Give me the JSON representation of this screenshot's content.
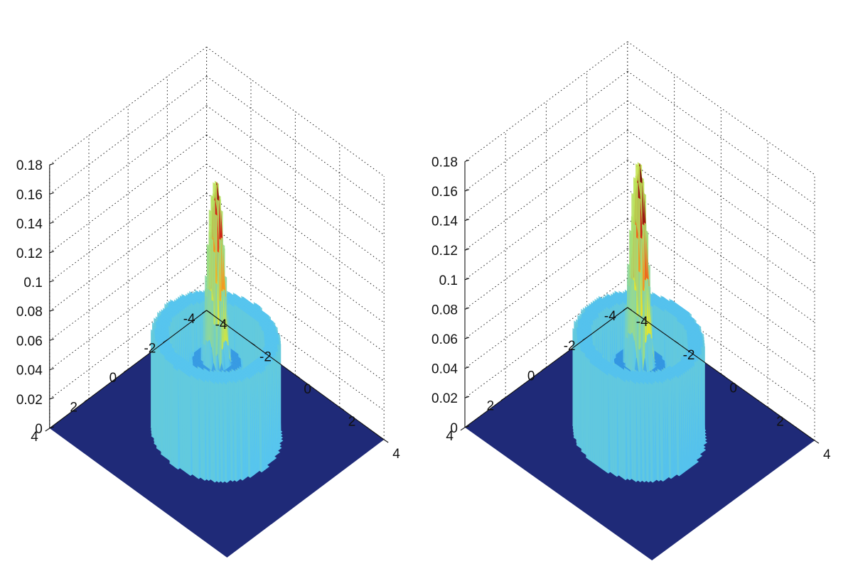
{
  "colors": {
    "floor": "#1f2a78",
    "colormap": [
      "#0a1a86",
      "#1558c8",
      "#2f8fe0",
      "#58c6ee",
      "#a8e070",
      "#e8e62a",
      "#f4a324",
      "#e62a1a",
      "#7a0c0c"
    ]
  },
  "chart_data": [
    {
      "type": "surface",
      "title": "",
      "xlabel": "",
      "ylabel": "",
      "zlabel": "",
      "xlim": [
        -4,
        4
      ],
      "ylim": [
        -4,
        4
      ],
      "zlim": [
        0,
        0.18
      ],
      "x_ticks": [
        "-4",
        "-2",
        "0",
        "2",
        "4"
      ],
      "y_ticks": [
        "-4",
        "-2",
        "0",
        "2",
        "4"
      ],
      "z_ticks": [
        "0",
        "0.02",
        "0.04",
        "0.06",
        "0.08",
        "0.1",
        "0.12",
        "0.14",
        "0.16",
        "0.18"
      ],
      "grid": true,
      "peak": {
        "value": 0.172,
        "width": 0.28
      },
      "shoulder": {
        "value": 0.05,
        "radius": 0.85
      },
      "ring": {
        "value": 0.067,
        "inner_radius": 1.6,
        "outer_radius": 2.1
      },
      "background": 0
    },
    {
      "type": "surface",
      "title": "",
      "xlabel": "",
      "ylabel": "",
      "zlabel": "",
      "xlim": [
        -4,
        4
      ],
      "ylim": [
        -4,
        4
      ],
      "zlim": [
        0,
        0.18
      ],
      "x_ticks": [
        "-4",
        "-2",
        "0",
        "2",
        "4"
      ],
      "y_ticks": [
        "-4",
        "-2",
        "0",
        "2",
        "4"
      ],
      "z_ticks": [
        "0",
        "0.02",
        "0.04",
        "0.06",
        "0.08",
        "0.1",
        "0.12",
        "0.14",
        "0.16",
        "0.18"
      ],
      "grid": true,
      "peak": {
        "value": 0.183,
        "width": 0.28
      },
      "shoulder": {
        "value": 0.048,
        "radius": 0.85
      },
      "ring": {
        "value": 0.066,
        "inner_radius": 1.55,
        "outer_radius": 2.05
      },
      "background": 0
    }
  ]
}
